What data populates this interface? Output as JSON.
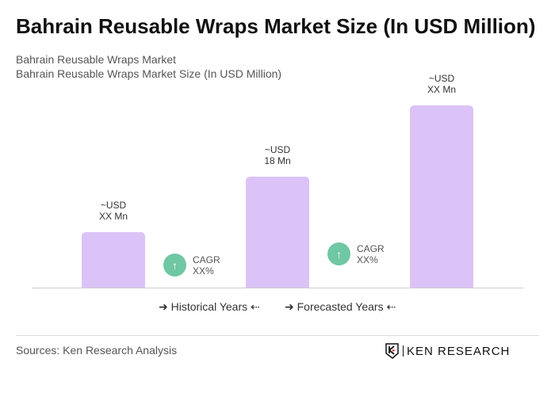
{
  "title": "Bahrain Reusable Wraps Market Size (In USD Million)",
  "subtitle1": "Bahrain Reusable Wraps Market",
  "subtitle2": "Bahrain Reusable Wraps Market Size (In USD Million)",
  "chart_data": {
    "type": "bar",
    "categories": [
      "",
      "",
      ""
    ],
    "values": [
      9,
      18,
      29.6
    ],
    "data_labels": [
      [
        "~USD",
        "XX Mn"
      ],
      [
        "~USD",
        "18 Mn"
      ],
      [
        "~USD",
        "XX Mn"
      ]
    ],
    "bar_color": "#dcc3f7",
    "cagr": [
      {
        "label": "CAGR",
        "value": "XX%"
      },
      {
        "label": "CAGR",
        "value": "XX%"
      }
    ],
    "cagr_color": "#6fc7a3",
    "legend": [
      "Historical Years",
      "Forecasted Years"
    ],
    "grid": false
  },
  "footer": {
    "sources": "Sources: Ken Research Analysis",
    "logo": "KEN RESEARCH"
  }
}
